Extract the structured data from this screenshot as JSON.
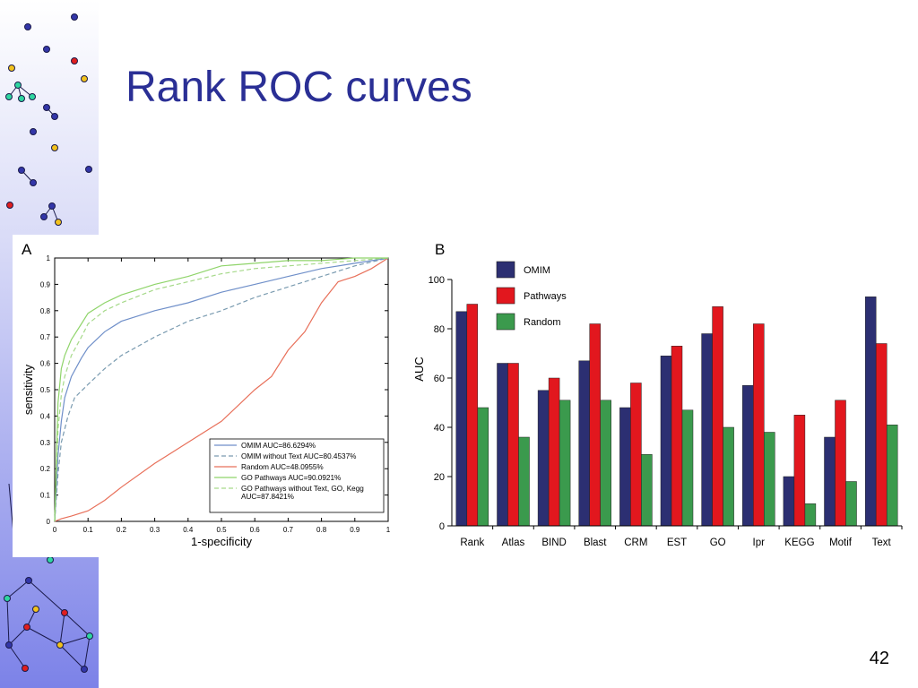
{
  "slide": {
    "title": "Rank ROC curves",
    "page_number": "42"
  },
  "colors": {
    "title": "#2a2f95",
    "omim": "#2c2f72",
    "pathways": "#e2171e",
    "random": "#3b9a4d",
    "roc_omim": "#6f8fc9",
    "roc_omim_notext": "#7a9bb0",
    "roc_random": "#e8705a",
    "roc_go": "#8fd46a",
    "roc_go_notext": "#a6d98a"
  },
  "chart_data": [
    {
      "panel": "A",
      "type": "line",
      "xlabel": "1-specificity",
      "ylabel": "sensitivity",
      "xlim": [
        0,
        1
      ],
      "ylim": [
        0,
        1
      ],
      "xticks": [
        "0",
        "0.1",
        "0.2",
        "0.3",
        "0.4",
        "0.5",
        "0.6",
        "0.7",
        "0.8",
        "0.9",
        "1"
      ],
      "yticks": [
        "0",
        "0.1",
        "0.2",
        "0.3",
        "0.4",
        "0.5",
        "0.6",
        "0.7",
        "0.8",
        "0.9",
        "1"
      ],
      "legend_position": "bottom-right",
      "series": [
        {
          "name": "OMIM AUC=86.6294%",
          "style": "solid",
          "color_key": "roc_omim",
          "x": [
            0,
            0.01,
            0.02,
            0.03,
            0.05,
            0.08,
            0.1,
            0.15,
            0.2,
            0.3,
            0.4,
            0.5,
            0.6,
            0.7,
            0.8,
            0.9,
            1
          ],
          "y": [
            0,
            0.25,
            0.38,
            0.47,
            0.55,
            0.62,
            0.66,
            0.72,
            0.76,
            0.8,
            0.83,
            0.87,
            0.9,
            0.93,
            0.96,
            0.98,
            1
          ]
        },
        {
          "name": "OMIM without Text AUC=80.4537%",
          "style": "dashed",
          "color_key": "roc_omim_notext",
          "x": [
            0,
            0.01,
            0.02,
            0.04,
            0.06,
            0.1,
            0.15,
            0.2,
            0.3,
            0.4,
            0.5,
            0.6,
            0.7,
            0.8,
            0.9,
            1
          ],
          "y": [
            0,
            0.18,
            0.3,
            0.4,
            0.47,
            0.52,
            0.58,
            0.63,
            0.7,
            0.76,
            0.8,
            0.85,
            0.89,
            0.93,
            0.97,
            1
          ]
        },
        {
          "name": "Random AUC=48.0955%",
          "style": "solid",
          "color_key": "roc_random",
          "x": [
            0,
            0.02,
            0.05,
            0.1,
            0.15,
            0.2,
            0.3,
            0.4,
            0.5,
            0.6,
            0.65,
            0.7,
            0.75,
            0.8,
            0.85,
            0.9,
            0.95,
            1
          ],
          "y": [
            0,
            0.01,
            0.02,
            0.04,
            0.08,
            0.13,
            0.22,
            0.3,
            0.38,
            0.5,
            0.55,
            0.65,
            0.72,
            0.83,
            0.91,
            0.93,
            0.96,
            1
          ]
        },
        {
          "name": "GO Pathways AUC=90.0921%",
          "style": "solid",
          "color_key": "roc_go",
          "x": [
            0,
            0.01,
            0.02,
            0.03,
            0.05,
            0.08,
            0.1,
            0.15,
            0.2,
            0.3,
            0.4,
            0.5,
            0.6,
            0.7,
            0.8,
            0.9,
            1
          ],
          "y": [
            0,
            0.45,
            0.58,
            0.63,
            0.69,
            0.75,
            0.79,
            0.83,
            0.86,
            0.9,
            0.93,
            0.97,
            0.98,
            0.99,
            0.99,
            1,
            1
          ]
        },
        {
          "name": "GO Pathways without Text, GO, Kegg AUC=87.8421%",
          "style": "dashed",
          "color_key": "roc_go_notext",
          "x": [
            0,
            0.01,
            0.02,
            0.03,
            0.05,
            0.08,
            0.1,
            0.15,
            0.2,
            0.3,
            0.4,
            0.5,
            0.6,
            0.7,
            0.8,
            0.9,
            1
          ],
          "y": [
            0,
            0.35,
            0.48,
            0.55,
            0.63,
            0.7,
            0.75,
            0.8,
            0.83,
            0.88,
            0.91,
            0.94,
            0.96,
            0.97,
            0.98,
            0.99,
            1
          ]
        }
      ],
      "legend_lines": [
        [
          "OMIM AUC=86.6294%"
        ],
        [
          "OMIM without Text AUC=80.4537%"
        ],
        [
          "Random AUC=48.0955%"
        ],
        [
          "GO Pathways AUC=90.0921%"
        ],
        [
          "GO Pathways without Text, GO, Kegg",
          "AUC=87.8421%"
        ]
      ]
    },
    {
      "panel": "B",
      "type": "bar",
      "ylabel": "AUC",
      "ylim": [
        0,
        100
      ],
      "yticks": [
        "0",
        "20",
        "40",
        "60",
        "80",
        "100"
      ],
      "legend_position": "top-left",
      "categories": [
        "Rank",
        "Atlas",
        "BIND",
        "Blast",
        "CRM",
        "EST",
        "GO",
        "Ipr",
        "KEGG",
        "Motif",
        "Text"
      ],
      "series": [
        {
          "name": "OMIM",
          "color_key": "omim",
          "values": [
            87,
            66,
            55,
            67,
            48,
            69,
            78,
            57,
            20,
            36,
            93
          ]
        },
        {
          "name": "Pathways",
          "color_key": "pathways",
          "values": [
            90,
            66,
            60,
            82,
            58,
            73,
            89,
            82,
            45,
            51,
            74
          ]
        },
        {
          "name": "Random",
          "color_key": "random",
          "values": [
            48,
            36,
            51,
            51,
            29,
            47,
            40,
            38,
            9,
            18,
            41
          ]
        }
      ]
    }
  ]
}
